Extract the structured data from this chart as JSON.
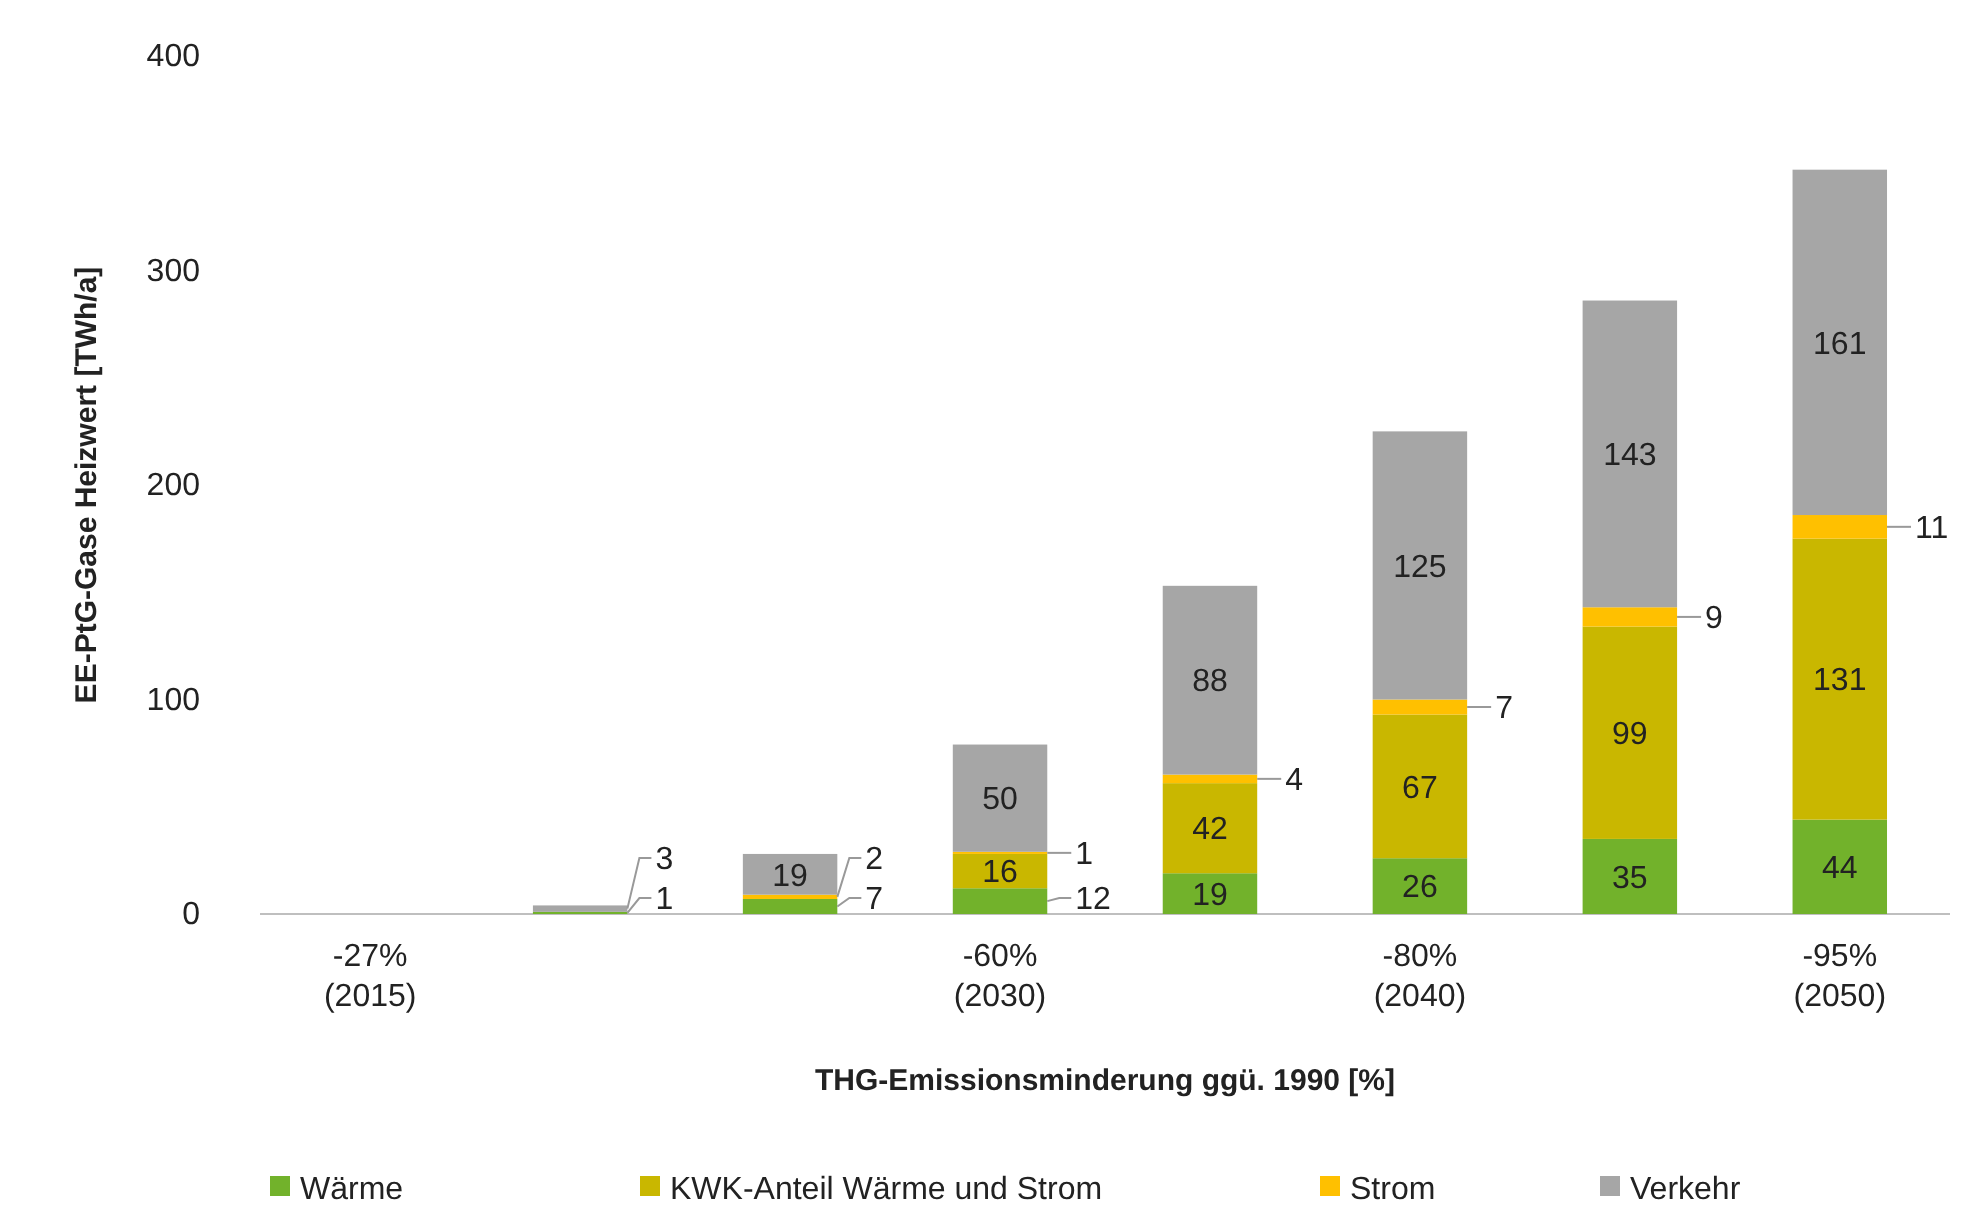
{
  "chart_data": {
    "type": "bar",
    "stacked": true,
    "xlabel": "THG-Emissionsminderung ggü. 1990 [%]",
    "ylabel": "EE-PtG-Gase Heizwert [TWh/a]",
    "categories": [
      "-27%\n(2015)",
      null,
      null,
      "-60%\n(2030)",
      null,
      "-80%\n(2040)",
      null,
      "-95%\n(2050)"
    ],
    "ylim": [
      0,
      400
    ],
    "yticks": [
      0,
      100,
      200,
      300,
      400
    ],
    "grid": false,
    "legend": "bottom",
    "series": [
      {
        "name": "Wärme",
        "color": "#72b22b",
        "values": [
          null,
          1,
          7,
          12,
          19,
          26,
          35,
          44
        ],
        "value_labels": [
          null,
          "1",
          "7",
          "12",
          "19",
          "26",
          "35",
          "44"
        ]
      },
      {
        "name": "KWK-Anteil Wärme und Strom",
        "color": "#c9b700",
        "values": [
          null,
          0,
          0,
          16,
          42,
          67,
          99,
          131
        ],
        "value_labels": [
          null,
          null,
          null,
          "16",
          "42",
          "67",
          "99",
          "131"
        ]
      },
      {
        "name": "Strom",
        "color": "#ffc000",
        "values": [
          null,
          0,
          2,
          1,
          4,
          7,
          9,
          11
        ],
        "value_labels": [
          null,
          null,
          "2",
          "1",
          "4",
          "7",
          "9",
          "11"
        ]
      },
      {
        "name": "Verkehr",
        "color": "#a6a6a6",
        "values": [
          null,
          3,
          19,
          50,
          88,
          125,
          143,
          161
        ],
        "value_labels": [
          null,
          "3",
          "19",
          "50",
          "88",
          "125",
          "143",
          "161"
        ]
      }
    ]
  }
}
